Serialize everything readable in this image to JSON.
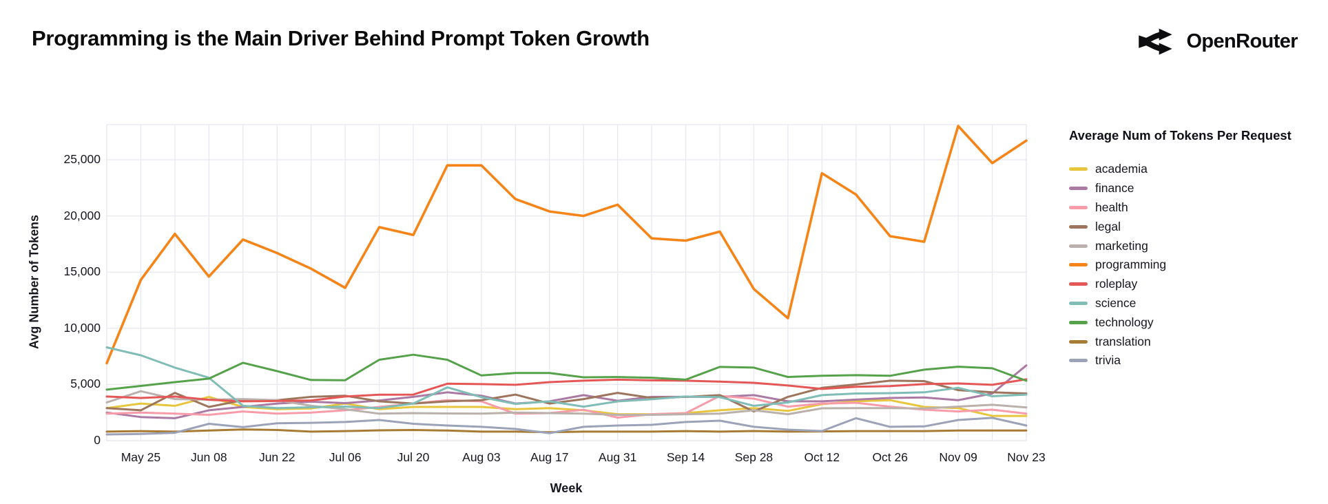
{
  "header": {
    "title": "Programming is the Main Driver Behind Prompt Token Growth",
    "logo_text": "OpenRouter"
  },
  "legend": {
    "title": "Average Num of Tokens Per Request",
    "position": "right"
  },
  "axes": {
    "x_title": "Week",
    "y_title": "Avg Number of Tokens"
  },
  "colors": {
    "background": "#ffffff",
    "gridline": "#e8e8f0",
    "axis_text": "#16161f",
    "title_text": "#0b0b0b",
    "logo": "#0d0d0f"
  },
  "chart_data": {
    "type": "line",
    "title": "Programming is the Main Driver Behind Prompt Token Growth",
    "xlabel": "Week",
    "ylabel": "Avg Number of Tokens",
    "legend_title": "Average Num of Tokens Per Request",
    "legend_position": "right",
    "grid": true,
    "ylim": [
      0,
      28100
    ],
    "y_ticks": [
      0,
      5000,
      10000,
      15000,
      20000,
      25000
    ],
    "y_tick_labels": [
      "0",
      "5,000",
      "10,000",
      "15,000",
      "20,000",
      "25,000"
    ],
    "x": [
      "May 18",
      "May 25",
      "Jun 01",
      "Jun 08",
      "Jun 15",
      "Jun 22",
      "Jun 29",
      "Jul 06",
      "Jul 13",
      "Jul 20",
      "Jul 27",
      "Aug 03",
      "Aug 10",
      "Aug 17",
      "Aug 24",
      "Aug 31",
      "Sep 07",
      "Sep 14",
      "Sep 21",
      "Sep 28",
      "Oct 05",
      "Oct 12",
      "Oct 19",
      "Oct 26",
      "Nov 02",
      "Nov 09",
      "Nov 16",
      "Nov 23"
    ],
    "x_tick_labels": [
      "May 25",
      "Jun 08",
      "Jun 22",
      "Jul 06",
      "Jul 20",
      "Aug 03",
      "Aug 17",
      "Aug 31",
      "Sep 14",
      "Sep 28",
      "Oct 12",
      "Oct 26",
      "Nov 09",
      "Nov 23"
    ],
    "series": [
      {
        "name": "academia",
        "color": "#e7c63d",
        "values": [
          2900,
          3300,
          3100,
          3900,
          3000,
          2800,
          2860,
          3300,
          2800,
          3000,
          3000,
          3000,
          2800,
          2900,
          2700,
          2350,
          2350,
          2450,
          2700,
          2900,
          2650,
          3250,
          3500,
          3600,
          3000,
          2900,
          2200,
          2200
        ]
      },
      {
        "name": "finance",
        "color": "#ab7aa4",
        "values": [
          2500,
          2100,
          2000,
          2700,
          3000,
          3300,
          3470,
          3340,
          3580,
          3900,
          4300,
          4000,
          3300,
          3500,
          4050,
          3550,
          3900,
          3900,
          3900,
          4050,
          3500,
          3500,
          3650,
          3800,
          3850,
          3600,
          4200,
          6700
        ]
      },
      {
        "name": "health",
        "color": "#f89caa",
        "values": [
          2400,
          2500,
          2400,
          2300,
          2600,
          2400,
          2500,
          2700,
          3000,
          3300,
          3600,
          3500,
          2400,
          2450,
          2750,
          2050,
          2350,
          2450,
          3980,
          3740,
          3030,
          3300,
          3370,
          3030,
          2760,
          2600,
          2760,
          2400
        ]
      },
      {
        "name": "legal",
        "color": "#9d755d",
        "values": [
          2900,
          2700,
          4250,
          3000,
          3600,
          3600,
          3900,
          4000,
          3500,
          3300,
          3500,
          3600,
          4100,
          3300,
          3700,
          4250,
          3800,
          3900,
          4050,
          2600,
          3900,
          4700,
          5000,
          5340,
          5300,
          4500,
          4300,
          4200
        ]
      },
      {
        "name": "marketing",
        "color": "#bab0ac",
        "values": [
          3400,
          4400,
          3700,
          3650,
          3700,
          3600,
          3100,
          2800,
          2400,
          2450,
          2420,
          2400,
          2500,
          2450,
          2400,
          2300,
          2300,
          2350,
          2400,
          2700,
          2350,
          2880,
          2900,
          2900,
          2870,
          3030,
          3190,
          2960
        ]
      },
      {
        "name": "programming",
        "color": "#f58518",
        "values": [
          6900,
          14300,
          18400,
          14600,
          17900,
          16700,
          15300,
          13600,
          19000,
          18300,
          24500,
          24500,
          21500,
          20400,
          20000,
          21000,
          18000,
          17800,
          18600,
          13500,
          10900,
          23800,
          21900,
          18200,
          17700,
          28000,
          24700,
          26700
        ]
      },
      {
        "name": "roleplay",
        "color": "#e45756",
        "values": [
          3930,
          3800,
          3930,
          3640,
          3500,
          3530,
          3580,
          3930,
          4090,
          4100,
          5070,
          5030,
          4970,
          5210,
          5340,
          5430,
          5370,
          5340,
          5250,
          5150,
          4910,
          4600,
          4790,
          4850,
          5030,
          5090,
          4970,
          5460
        ]
      },
      {
        "name": "science",
        "color": "#7fbdb6",
        "values": [
          8300,
          7600,
          6500,
          5600,
          3100,
          2900,
          2970,
          3030,
          2900,
          3300,
          4740,
          3870,
          3270,
          3500,
          3030,
          3490,
          3680,
          3930,
          3870,
          3100,
          3400,
          4050,
          4200,
          4230,
          4300,
          4700,
          3950,
          4100
        ]
      },
      {
        "name": "technology",
        "color": "#55a24a",
        "values": [
          4540,
          4870,
          5210,
          5520,
          6930,
          6190,
          5400,
          5380,
          7200,
          7650,
          7200,
          5800,
          6020,
          6020,
          5640,
          5660,
          5600,
          5430,
          6560,
          6500,
          5670,
          5770,
          5830,
          5770,
          6320,
          6580,
          6440,
          5330
        ]
      },
      {
        "name": "translation",
        "color": "#a87b35",
        "values": [
          800,
          850,
          800,
          900,
          1000,
          950,
          800,
          850,
          920,
          950,
          900,
          800,
          800,
          750,
          800,
          800,
          800,
          850,
          800,
          860,
          800,
          820,
          850,
          850,
          850,
          900,
          900,
          900
        ]
      },
      {
        "name": "trivia",
        "color": "#9ca3b8",
        "values": [
          550,
          600,
          700,
          1500,
          1200,
          1550,
          1590,
          1660,
          1840,
          1500,
          1350,
          1230,
          1040,
          670,
          1230,
          1350,
          1410,
          1660,
          1780,
          1230,
          980,
          860,
          2000,
          1230,
          1270,
          1840,
          2030,
          1350
        ]
      }
    ]
  }
}
